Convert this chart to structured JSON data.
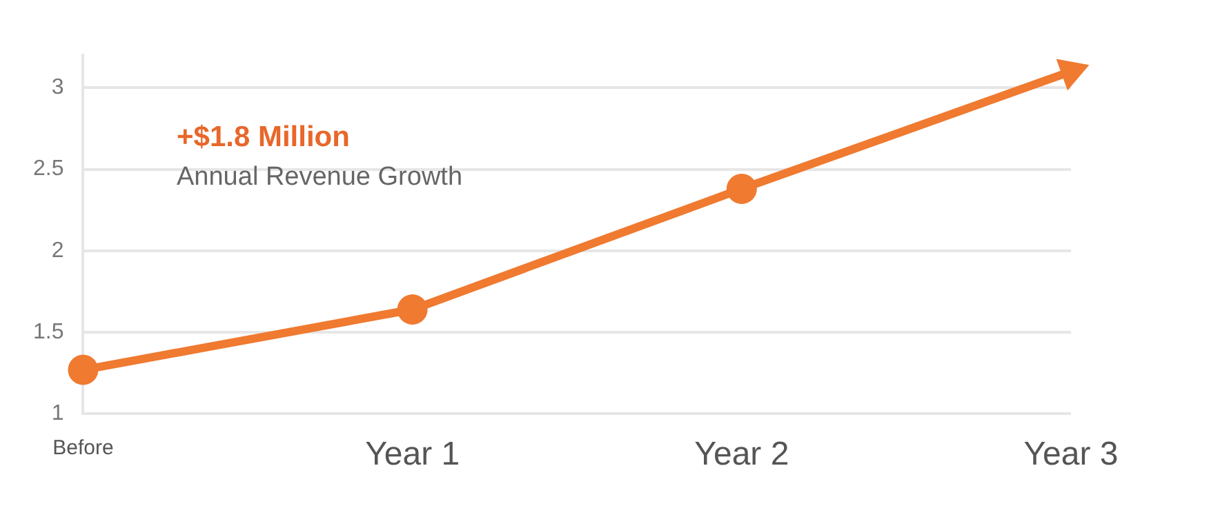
{
  "chart_data": {
    "type": "line",
    "categories": [
      "Before",
      "Year 1",
      "Year 2",
      "Year 3"
    ],
    "series": [
      {
        "color": "#ef7a30",
        "values": [
          1.27,
          1.64,
          2.38,
          3.1
        ]
      }
    ],
    "ylim": [
      1,
      3.2
    ],
    "yticks": [
      1,
      1.5,
      2,
      2.5,
      3
    ],
    "grid": "y",
    "marker": "circle",
    "line_style": "solid",
    "annotations": [
      "+$1.8 Million",
      "Annual Revenue Growth"
    ]
  }
}
